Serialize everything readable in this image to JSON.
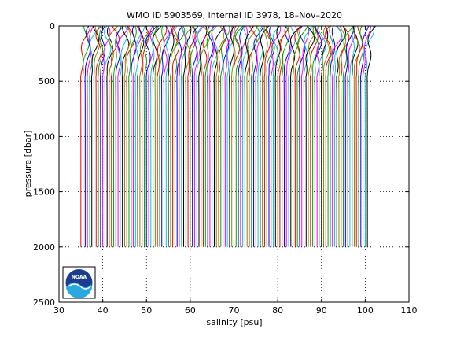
{
  "chart_data": {
    "type": "line",
    "title": "WMO ID 5903569, internal ID 3978, 18–Nov–2020",
    "xlabel": "salinity [psu]",
    "ylabel": "pressure [dbar]",
    "xlim": [
      30,
      110
    ],
    "ylim": [
      0,
      2500
    ],
    "y_reversed": true,
    "x_ticks": [
      30,
      40,
      50,
      60,
      70,
      80,
      90,
      100,
      110
    ],
    "y_ticks": [
      0,
      500,
      1000,
      1500,
      2000,
      2500
    ],
    "grid": "dotted",
    "profile_depth_top": 0,
    "profile_depth_bottom": 2000,
    "profile_offset_step": 0.5,
    "profile_count": 132,
    "profile_first_deep_salinity": 35.0,
    "profile_last_deep_salinity": 100.6,
    "profile_surface_salinity_min": 36.0,
    "profile_surface_salinity_max": 102.0,
    "colors": [
      "#ff0000",
      "#00aa00",
      "#0000ff",
      "#ff00ff",
      "#00cccc",
      "#000000",
      "#888800"
    ],
    "logo": {
      "text": "NOAA",
      "name": "noaa-logo"
    }
  }
}
